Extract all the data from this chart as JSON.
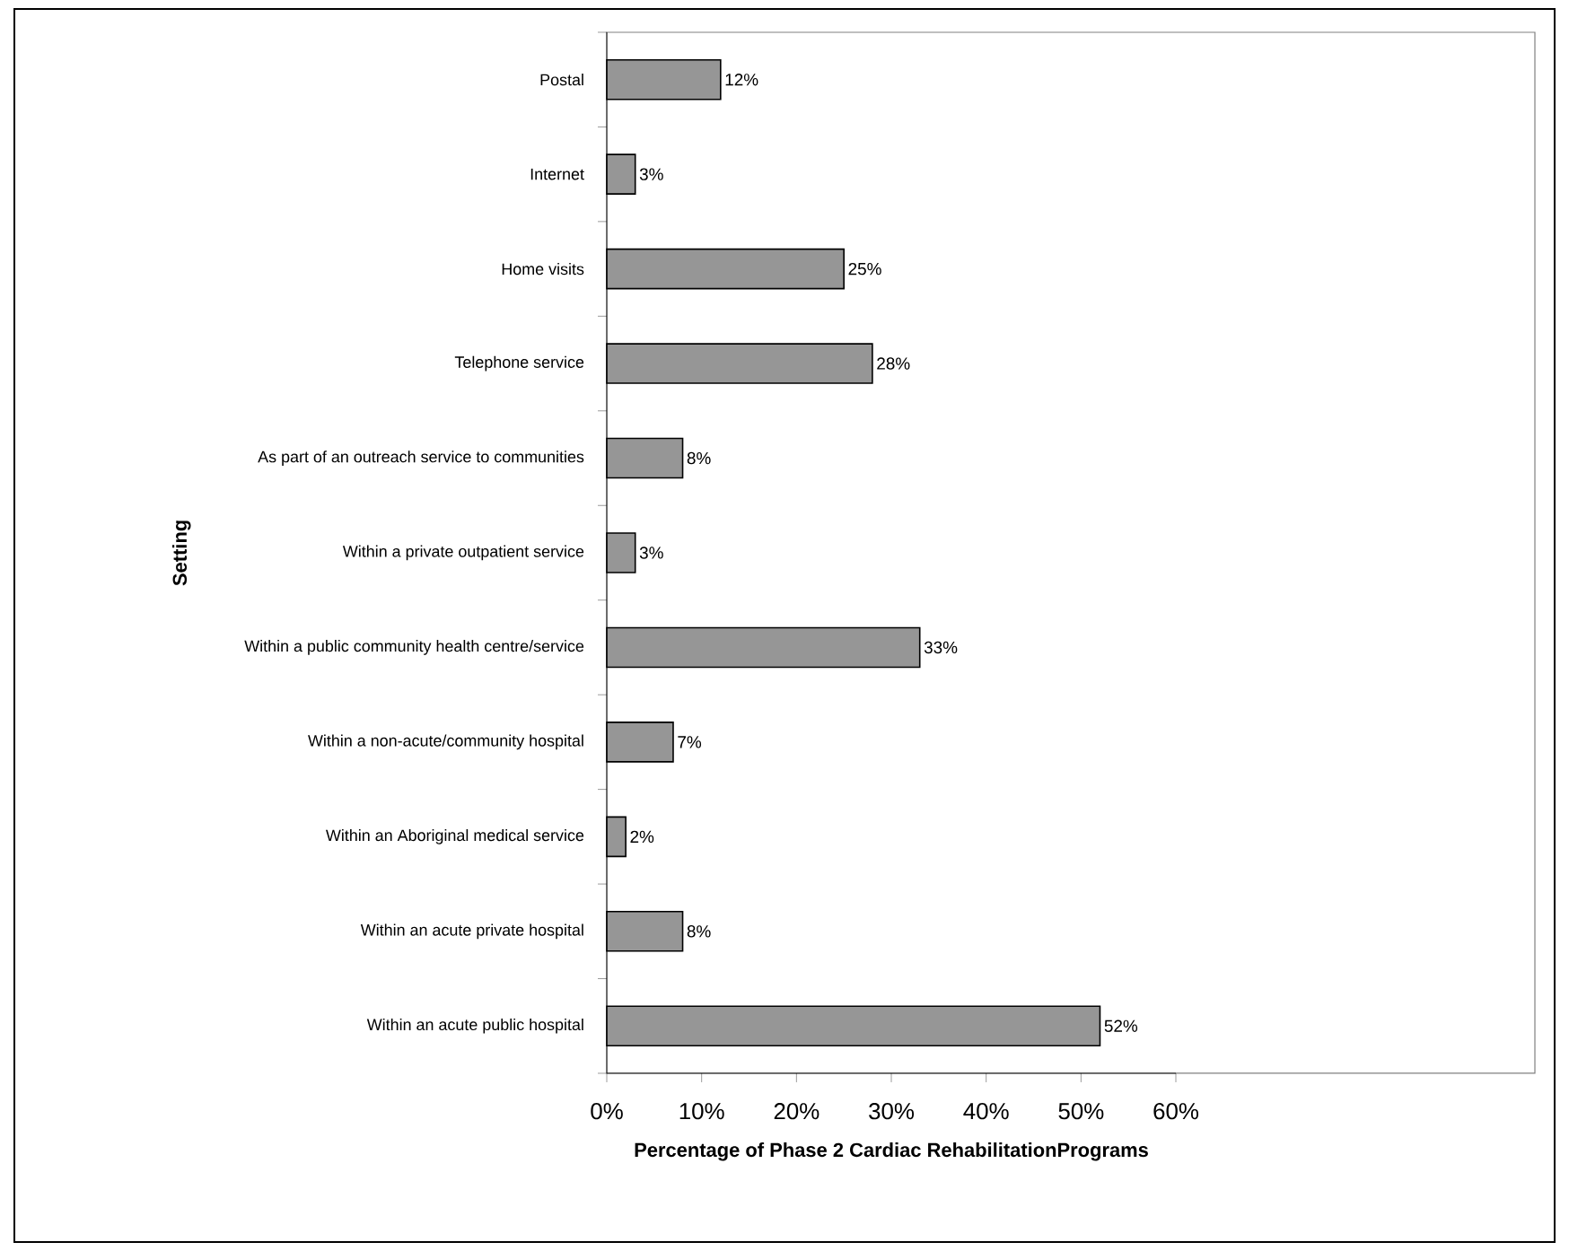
{
  "chart_data": {
    "type": "bar",
    "orientation": "horizontal",
    "xlabel": "Percentage of Phase 2 Cardiac RehabilitationPrograms",
    "ylabel": "Setting",
    "categories": [
      "Postal",
      "Internet",
      "Home visits",
      "Telephone service",
      "As part of an outreach service to communities",
      "Within a private outpatient service",
      "Within a public community health centre/service",
      "Within a non-acute/community hospital",
      "Within an Aboriginal medical service",
      "Within an acute private hospital",
      "Within an acute public hospital"
    ],
    "values": [
      12,
      3,
      25,
      28,
      8,
      3,
      33,
      7,
      2,
      8,
      52
    ],
    "value_labels": [
      "12%",
      "3%",
      "25%",
      "28%",
      "8%",
      "3%",
      "33%",
      "7%",
      "2%",
      "8%",
      "52%"
    ],
    "color": "#969696",
    "xlim": [
      0,
      60
    ],
    "xticks": [
      {
        "value": 0,
        "label": "0%"
      },
      {
        "value": 10,
        "label": "10%"
      },
      {
        "value": 20,
        "label": "20%"
      },
      {
        "value": 30,
        "label": "30%"
      },
      {
        "value": 40,
        "label": "40%"
      },
      {
        "value": 50,
        "label": "50%"
      },
      {
        "value": 60,
        "label": "60%"
      }
    ]
  }
}
